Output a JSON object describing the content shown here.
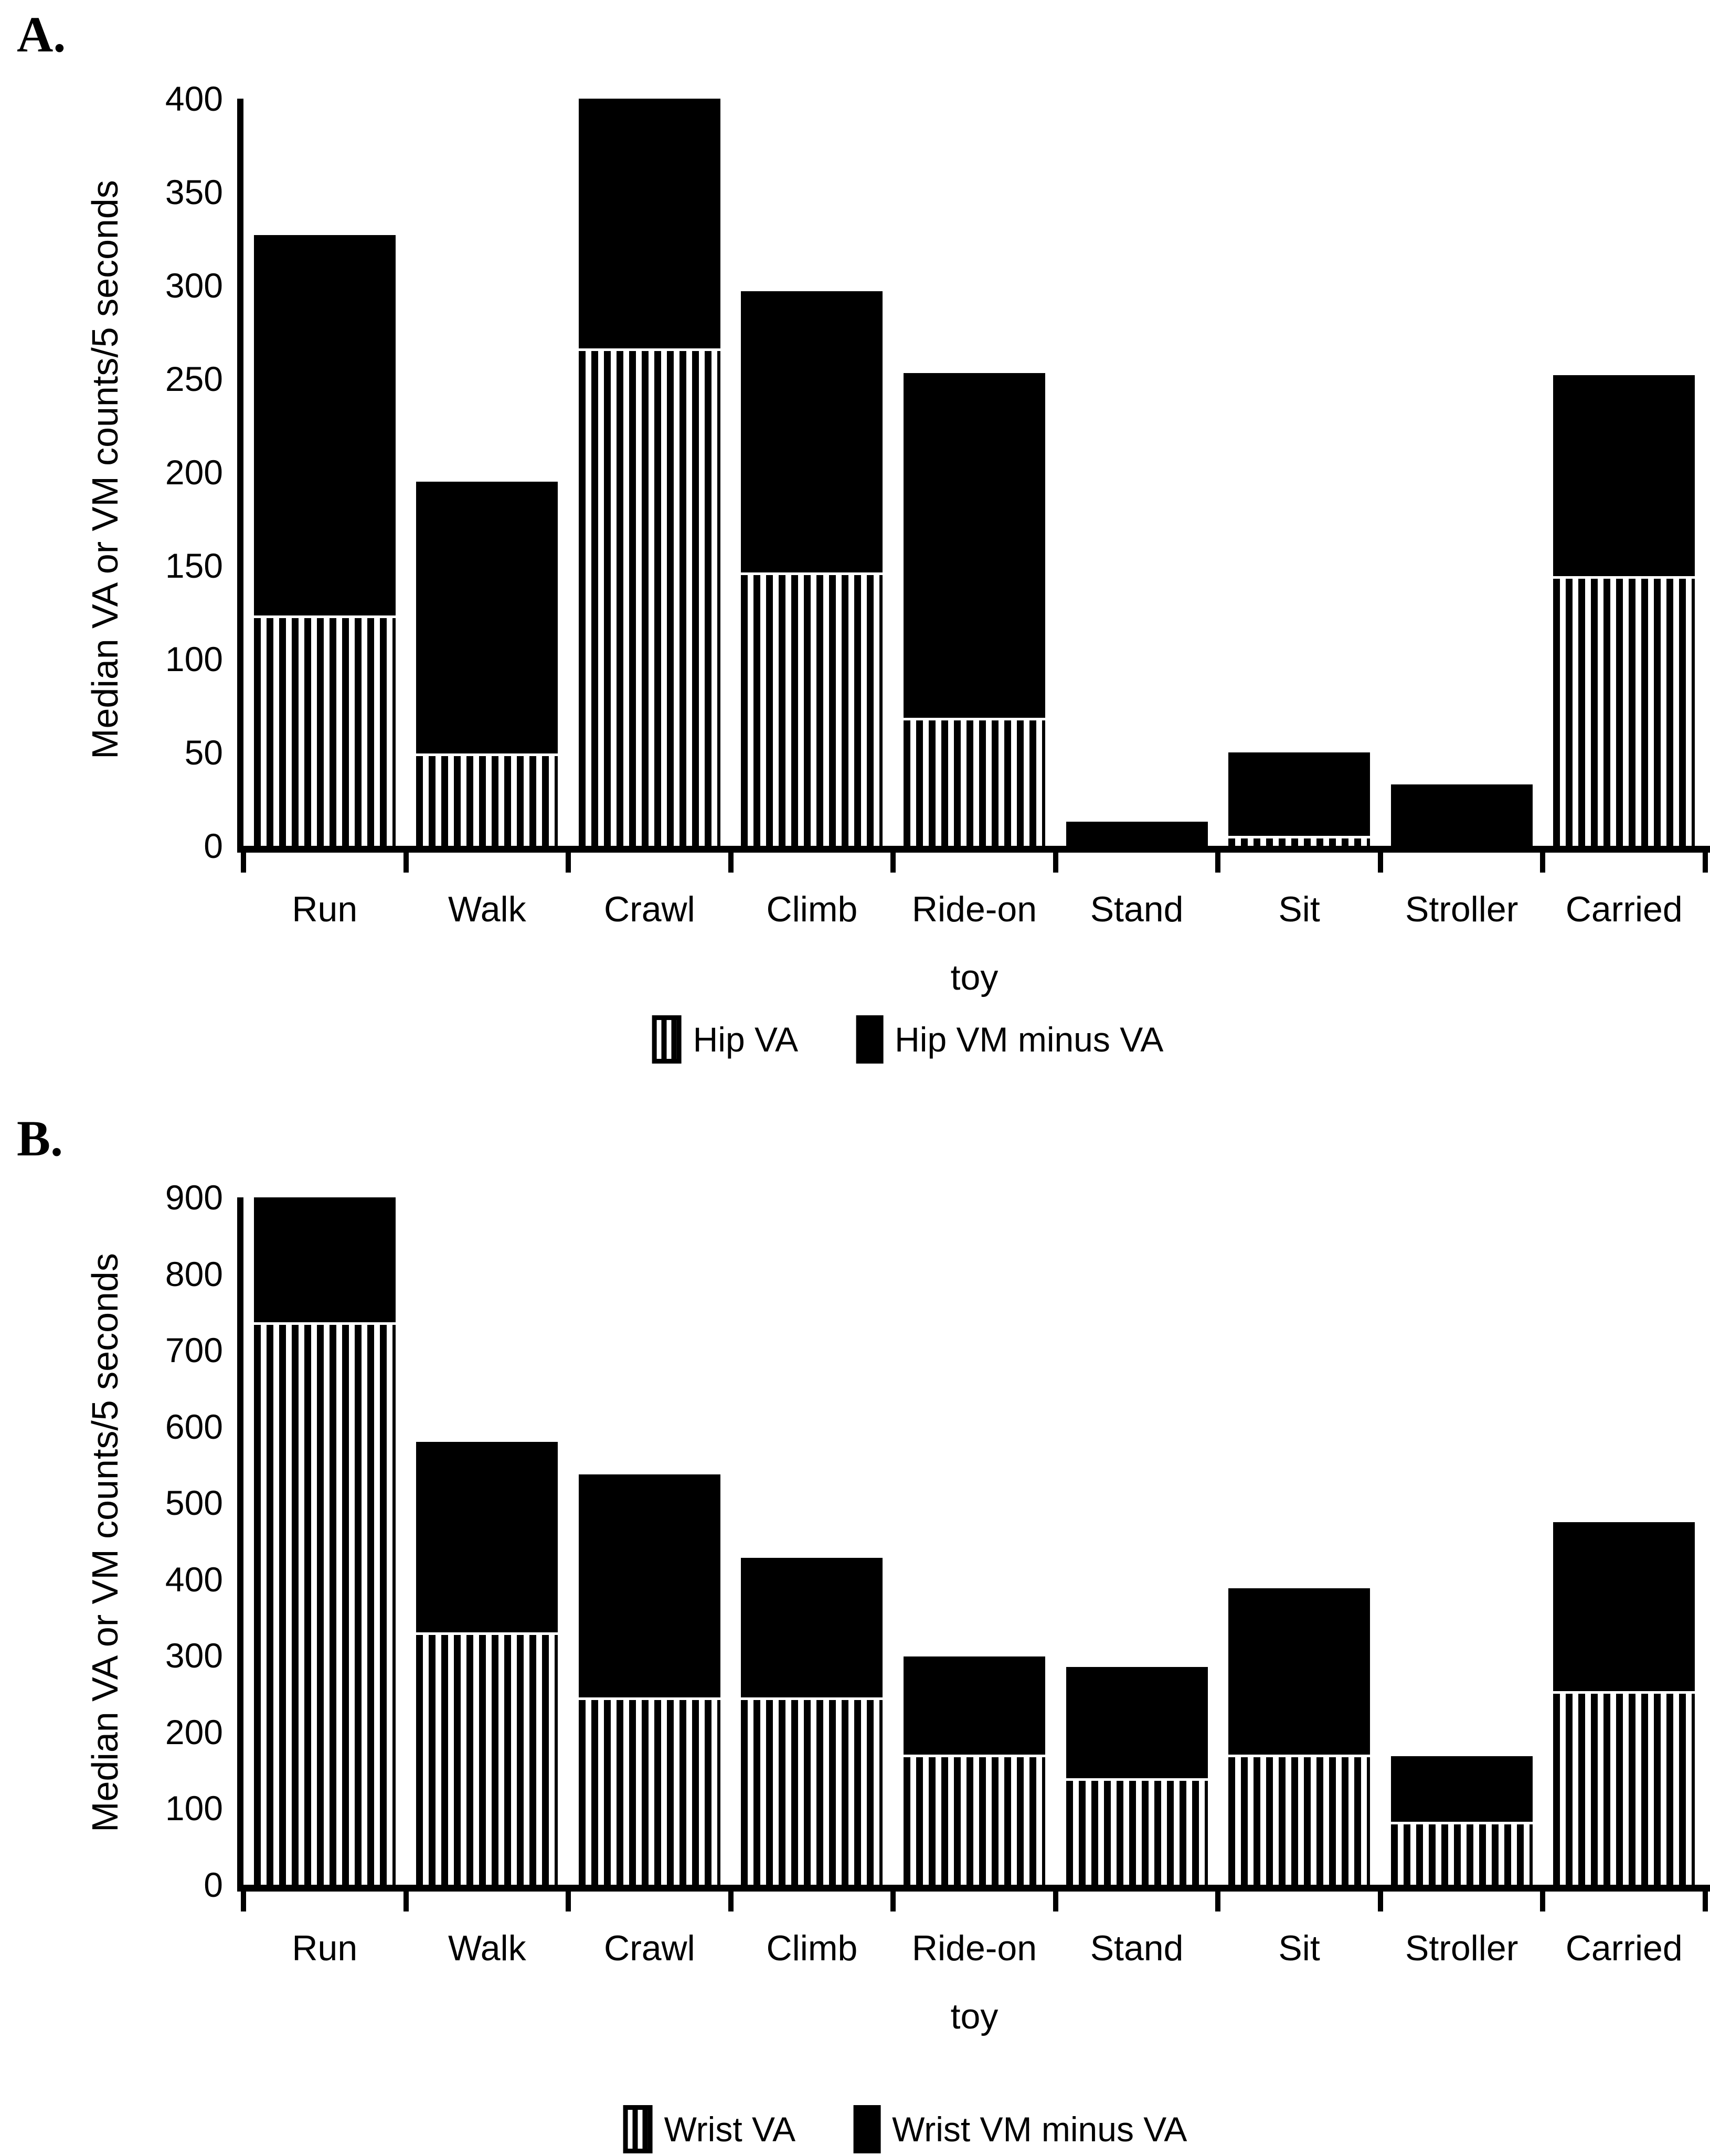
{
  "figure": {
    "panels": [
      {
        "label": "A.",
        "y_axis_label": "Median VA or VM counts/5 seconds",
        "legend": [
          {
            "swatch": "striped",
            "label": "Hip VA"
          },
          {
            "swatch": "solid",
            "label": "Hip VM minus VA"
          }
        ],
        "chart_data": {
          "type": "bar",
          "stacked": true,
          "orientation": "vertical",
          "categories": [
            "Run",
            "Walk",
            "Crawl",
            "Climb",
            "Ride-on\ntoy",
            "Stand",
            "Sit",
            "Stroller",
            "Carried"
          ],
          "series": [
            {
              "name": "Hip VA",
              "pattern": "striped",
              "values": [
                122,
                48,
                265,
                145,
                67,
                0,
                4,
                0,
                143
              ]
            },
            {
              "name": "Hip VM minus VA",
              "pattern": "solid",
              "values": [
                205,
                147,
                135,
                152,
                186,
                13,
                46,
                33,
                109
              ]
            }
          ],
          "stack_totals": [
            327,
            195,
            400,
            297,
            253,
            13,
            50,
            33,
            252
          ],
          "title": "",
          "xlabel": "",
          "ylabel": "Median VA or VM counts/5 seconds",
          "ylim": [
            0,
            400
          ],
          "ytick_step": 50,
          "grid": false,
          "legend_position": "bottom",
          "bar_colors": {
            "striped": "black-white vertical stripes",
            "solid": "#000000"
          }
        }
      },
      {
        "label": "B.",
        "y_axis_label": "Median VA or VM counts/5 seconds",
        "legend": [
          {
            "swatch": "striped",
            "label": "Wrist VA"
          },
          {
            "swatch": "solid",
            "label": "Wrist VM minus VA"
          }
        ],
        "chart_data": {
          "type": "bar",
          "stacked": true,
          "orientation": "vertical",
          "categories": [
            "Run",
            "Walk",
            "Crawl",
            "Climb",
            "Ride-on\ntoy",
            "Stand",
            "Sit",
            "Stroller",
            "Carried"
          ],
          "series": [
            {
              "name": "Wrist VA",
              "pattern": "striped",
              "values": [
                733,
                327,
                242,
                242,
                167,
                136,
                167,
                79,
                250
              ]
            },
            {
              "name": "Wrist VM minus VA",
              "pattern": "solid",
              "values": [
                167,
                253,
                295,
                186,
                132,
                149,
                221,
                89,
                225
              ]
            }
          ],
          "stack_totals": [
            900,
            580,
            537,
            428,
            299,
            285,
            388,
            168,
            475
          ],
          "title": "",
          "xlabel": "",
          "ylabel": "Median VA or VM counts/5 seconds",
          "ylim": [
            0,
            900
          ],
          "ytick_step": 100,
          "grid": false,
          "legend_position": "bottom",
          "bar_colors": {
            "striped": "black-white vertical stripes",
            "solid": "#000000"
          }
        }
      }
    ]
  }
}
